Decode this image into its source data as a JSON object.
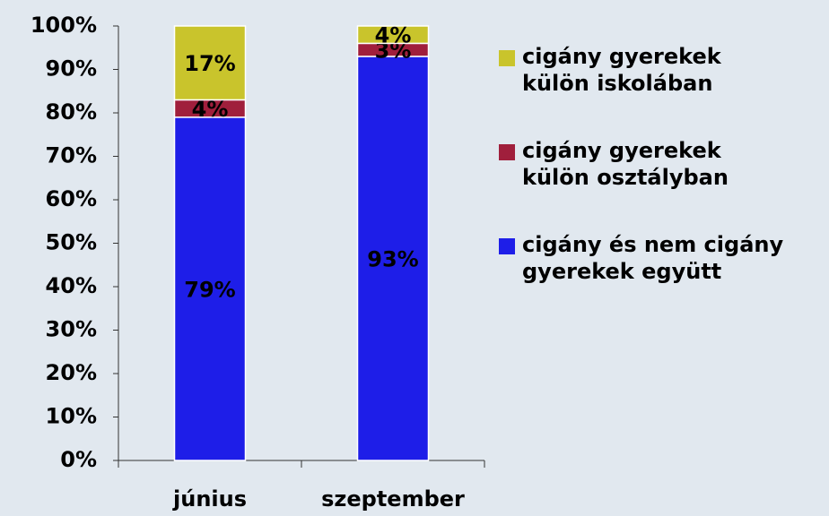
{
  "chart_data": {
    "type": "stacked_bar",
    "categories": [
      "június",
      "szeptember"
    ],
    "series": [
      {
        "name": "cigány és nem cigány\ngyerekek együtt",
        "color": "#1e1ee8",
        "values": [
          79,
          93
        ],
        "value_labels": [
          "79%",
          "93%"
        ]
      },
      {
        "name": "cigány gyerekek\nkülön osztályban",
        "color": "#a01f3c",
        "values": [
          4,
          3
        ],
        "value_labels": [
          "4%",
          "3%"
        ]
      },
      {
        "name": "cigány gyerekek\nkülön iskolában",
        "color": "#c9c42c",
        "values": [
          17,
          4
        ],
        "value_labels": [
          "17%",
          "4%"
        ]
      }
    ],
    "ylim": [
      0,
      100
    ],
    "yticks": [
      {
        "value": 0,
        "label": "0%"
      },
      {
        "value": 10,
        "label": "10%"
      },
      {
        "value": 20,
        "label": "20%"
      },
      {
        "value": 30,
        "label": "30%"
      },
      {
        "value": 40,
        "label": "40%"
      },
      {
        "value": 50,
        "label": "50%"
      },
      {
        "value": 60,
        "label": "60%"
      },
      {
        "value": 70,
        "label": "70%"
      },
      {
        "value": 80,
        "label": "80%"
      },
      {
        "value": 90,
        "label": "90%"
      },
      {
        "value": 100,
        "label": "100%"
      }
    ],
    "legend": "right"
  }
}
